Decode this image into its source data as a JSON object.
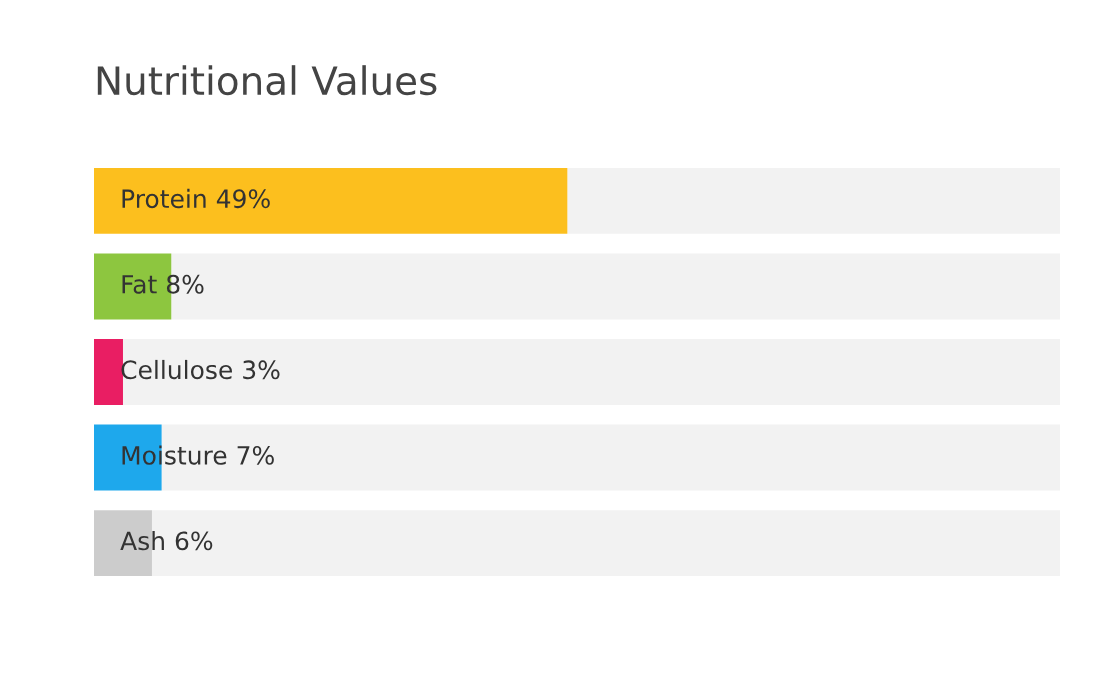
{
  "chart_data": {
    "type": "bar",
    "orientation": "horizontal",
    "stacked": true,
    "title": "Nutritional Values",
    "categories": [
      null,
      null,
      null,
      null,
      null
    ],
    "xlim": [
      0,
      100
    ],
    "tick_labels": false,
    "grid": false,
    "legend": false,
    "series": [
      {
        "colors": [
          "#fcbf1e",
          "#8dc63f",
          "#e91e63",
          "#1ea8ec",
          "#cccccc"
        ],
        "values": [
          49,
          8,
          3,
          7,
          6
        ],
        "value_labels": [
          "Protein 49%",
          "Fat 8%",
          "Cellulose 3%",
          "Moisture 7%",
          "Ash 6%"
        ]
      },
      {
        "color": "#f2f2f2",
        "values": [
          51,
          92,
          97,
          93,
          94
        ]
      }
    ]
  }
}
